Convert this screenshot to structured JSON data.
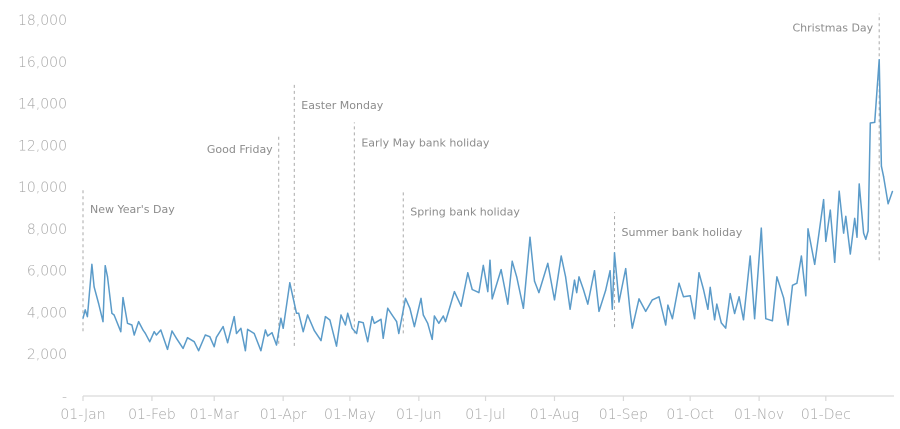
{
  "chart_data": {
    "type": "line",
    "title": "",
    "xlabel": "",
    "ylabel": "",
    "ylim": [
      0,
      18000
    ],
    "yticks": [
      {
        "value": 0,
        "label": "-"
      },
      {
        "value": 2000,
        "label": "2,000"
      },
      {
        "value": 4000,
        "label": "4,000"
      },
      {
        "value": 6000,
        "label": "6,000"
      },
      {
        "value": 8000,
        "label": "8,000"
      },
      {
        "value": 10000,
        "label": "10,000"
      },
      {
        "value": 12000,
        "label": "12,000"
      },
      {
        "value": 14000,
        "label": "14,000"
      },
      {
        "value": 16000,
        "label": "16,000"
      },
      {
        "value": 18000,
        "label": "18,000"
      }
    ],
    "xticks": [
      "01-Jan",
      "01-Feb",
      "01-Mar",
      "01-Apr",
      "01-May",
      "01-Jun",
      "01-Jul",
      "01-Aug",
      "01-Sep",
      "01-Oct",
      "01-Nov",
      "01-Dec"
    ],
    "grid": false,
    "line_color": "#5b9bc9",
    "annotation_color": "#aaaaaa",
    "series": [
      {
        "x": [
          "01-Jan",
          "02-Jan",
          "03-Jan",
          "05-Jan",
          "06-Jan",
          "08-Jan",
          "10-Jan",
          "11-Jan",
          "12-Jan",
          "14-Jan",
          "15-Jan",
          "18-Jan",
          "19-Jan",
          "21-Jan",
          "23-Jan",
          "24-Jan",
          "26-Jan",
          "28-Jan",
          "29-Jan",
          "31-Jan",
          "02-Feb",
          "03-Feb",
          "05-Feb",
          "08-Feb",
          "10-Feb",
          "12-Feb",
          "15-Feb",
          "17-Feb",
          "20-Feb",
          "22-Feb",
          "25-Feb",
          "27-Feb",
          "01-Mar",
          "02-Mar",
          "05-Mar",
          "07-Mar",
          "10-Mar",
          "11-Mar",
          "13-Mar",
          "15-Mar",
          "16-Mar",
          "19-Mar",
          "22-Mar",
          "24-Mar",
          "25-Mar",
          "27-Mar",
          "29-Mar",
          "31-Mar",
          "01-Apr",
          "04-Apr",
          "07-Apr",
          "08-Apr",
          "10-Apr",
          "12-Apr",
          "15-Apr",
          "18-Apr",
          "20-Apr",
          "22-Apr",
          "25-Apr",
          "27-Apr",
          "29-Apr",
          "30-Apr",
          "02-May",
          "04-May",
          "05-May",
          "07-May",
          "09-May",
          "11-May",
          "12-May",
          "15-May",
          "16-May",
          "18-May",
          "20-May",
          "22-May",
          "23-May",
          "26-May",
          "28-May",
          "30-May",
          "02-Jun",
          "03-Jun",
          "05-Jun",
          "07-Jun",
          "08-Jun",
          "10-Jun",
          "12-Jun",
          "13-Jun",
          "15-Jun",
          "17-Jun",
          "20-Jun",
          "23-Jun",
          "25-Jun",
          "28-Jun",
          "30-Jun",
          "02-Jul",
          "03-Jul",
          "04-Jul",
          "08-Jul",
          "11-Jul",
          "13-Jul",
          "15-Jul",
          "18-Jul",
          "21-Jul",
          "23-Jul",
          "25-Jul",
          "29-Jul",
          "01-Aug",
          "04-Aug",
          "06-Aug",
          "08-Aug",
          "10-Aug",
          "11-Aug",
          "12-Aug",
          "14-Aug",
          "16-Aug",
          "19-Aug",
          "21-Aug",
          "24-Aug",
          "26-Aug",
          "27-Aug",
          "28-Aug",
          "30-Aug",
          "02-Sep",
          "04-Sep",
          "05-Sep",
          "08-Sep",
          "11-Sep",
          "14-Sep",
          "17-Sep",
          "20-Sep",
          "21-Sep",
          "23-Sep",
          "26-Sep",
          "28-Sep",
          "01-Oct",
          "03-Oct",
          "05-Oct",
          "07-Oct",
          "09-Oct",
          "10-Oct",
          "12-Oct",
          "13-Oct",
          "15-Oct",
          "17-Oct",
          "19-Oct",
          "21-Oct",
          "23-Oct",
          "25-Oct",
          "28-Oct",
          "30-Oct",
          "02-Nov",
          "04-Nov",
          "07-Nov",
          "09-Nov",
          "12-Nov",
          "14-Nov",
          "16-Nov",
          "18-Nov",
          "20-Nov",
          "22-Nov",
          "23-Nov",
          "26-Nov",
          "30-Nov",
          "01-Dec",
          "03-Dec",
          "05-Dec",
          "07-Dec",
          "09-Dec",
          "10-Dec",
          "12-Dec",
          "14-Dec",
          "15-Dec",
          "16-Dec",
          "18-Dec",
          "19-Dec",
          "20-Dec",
          "21-Dec",
          "23-Dec",
          "25-Dec",
          "26-Dec",
          "27-Dec",
          "29-Dec",
          "31-Dec"
        ],
        "values": [
          3720,
          4120,
          3800,
          6300,
          5230,
          4430,
          3560,
          6240,
          5710,
          3960,
          3880,
          3080,
          4710,
          3480,
          3400,
          2920,
          3560,
          3160,
          3000,
          2600,
          3080,
          2920,
          3160,
          2230,
          3110,
          2760,
          2280,
          2790,
          2600,
          2170,
          2920,
          2840,
          2360,
          2810,
          3320,
          2550,
          3800,
          2990,
          3240,
          2170,
          3190,
          2990,
          2170,
          3160,
          2870,
          3030,
          2440,
          3720,
          3240,
          5420,
          3960,
          3960,
          3080,
          3880,
          3130,
          2650,
          3800,
          3640,
          2390,
          3880,
          3400,
          3960,
          3240,
          2990,
          3560,
          3510,
          2600,
          3800,
          3480,
          3670,
          2760,
          4200,
          3880,
          3560,
          2990,
          4670,
          4200,
          3320,
          4670,
          3880,
          3480,
          2710,
          3830,
          3480,
          3830,
          3560,
          4280,
          5000,
          4300,
          5900,
          5100,
          4950,
          6250,
          5000,
          6500,
          4650,
          6050,
          4400,
          6450,
          5700,
          4200,
          7600,
          5500,
          4950,
          6350,
          4600,
          6700,
          5700,
          4150,
          5550,
          4950,
          5700,
          5100,
          4400,
          6000,
          4050,
          5050,
          6000,
          4150,
          6850,
          4500,
          6100,
          4050,
          3250,
          4650,
          4050,
          4600,
          4750,
          3400,
          4350,
          3700,
          5400,
          4750,
          4800,
          3700,
          5900,
          5100,
          4150,
          5200,
          3650,
          4400,
          3500,
          3250,
          4900,
          3950,
          4750,
          3650,
          6700,
          3700,
          8040,
          3700,
          3600,
          5700,
          4700,
          3400,
          5300,
          5400,
          6700,
          4800,
          8000,
          6300,
          9400,
          7400,
          8900,
          6400,
          9800,
          7800,
          8600,
          6800,
          8500,
          7600,
          10150,
          7800,
          7500,
          7900,
          13070,
          13100,
          16100,
          11000,
          10500,
          9200,
          9800
        ]
      }
    ],
    "annotations": [
      {
        "label": "New Year's Day",
        "date": "01-Jan",
        "from": 3100,
        "to": 9900,
        "side": "right"
      },
      {
        "label": "Good Friday",
        "date": "30-Mar",
        "from": 2500,
        "to": 12500,
        "side": "left"
      },
      {
        "label": "Easter Monday",
        "date": "06-Apr",
        "from": 2400,
        "to": 14900,
        "side": "right"
      },
      {
        "label": "Early May bank holiday",
        "date": "03-May",
        "from": 3000,
        "to": 13100,
        "side": "right"
      },
      {
        "label": "Spring bank holiday",
        "date": "25-May",
        "from": 3000,
        "to": 9800,
        "side": "right"
      },
      {
        "label": "Summer bank holiday",
        "date": "28-Aug",
        "from": 3300,
        "to": 8800,
        "side": "right"
      },
      {
        "label": "Christmas Day",
        "date": "25-Dec",
        "from": 6500,
        "to": 18300,
        "side": "left"
      }
    ]
  }
}
